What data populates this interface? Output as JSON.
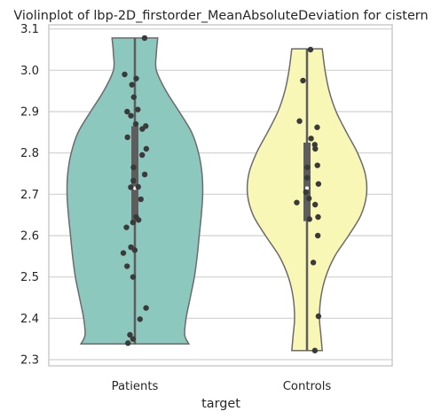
{
  "chart_data": {
    "type": "violin",
    "title": "Violinplot of lbp-2D_firstorder_MeanAbsoluteDeviation for cistern",
    "xlabel": "target",
    "ylabel": "",
    "ylim": [
      2.285,
      3.11
    ],
    "yticks": [
      2.3,
      2.4,
      2.5,
      2.6,
      2.7,
      2.8,
      2.9,
      3.0,
      3.1
    ],
    "ytick_labels": [
      "2.3",
      "2.4",
      "2.5",
      "2.6",
      "2.7",
      "2.8",
      "2.9",
      "3.0",
      "3.1"
    ],
    "categories": [
      "Patients",
      "Controls"
    ],
    "grid": true,
    "colors": {
      "Patients": "#8dc8be",
      "Controls": "#f9f7b6",
      "outline": "#6b6b6b",
      "points": "#3a3a3a",
      "grid": "#d0d0d0",
      "frame": "#cccccc"
    },
    "series": [
      {
        "category": "Patients",
        "min": 2.338,
        "max": 3.078,
        "q1": 2.635,
        "median": 2.715,
        "q3": 2.865,
        "violin_profile": [
          [
            2.338,
            0.78
          ],
          [
            2.36,
            0.72
          ],
          [
            2.4,
            0.74
          ],
          [
            2.45,
            0.8
          ],
          [
            2.5,
            0.86
          ],
          [
            2.55,
            0.9
          ],
          [
            2.6,
            0.93
          ],
          [
            2.65,
            0.96
          ],
          [
            2.7,
            0.98
          ],
          [
            2.75,
            0.97
          ],
          [
            2.8,
            0.92
          ],
          [
            2.85,
            0.82
          ],
          [
            2.9,
            0.64
          ],
          [
            2.95,
            0.45
          ],
          [
            3.0,
            0.31
          ],
          [
            3.04,
            0.31
          ],
          [
            3.078,
            0.33
          ]
        ],
        "points": [
          3.078,
          2.99,
          2.98,
          2.965,
          2.935,
          2.905,
          2.9,
          2.89,
          2.87,
          2.865,
          2.858,
          2.838,
          2.81,
          2.795,
          2.765,
          2.748,
          2.733,
          2.718,
          2.717,
          2.688,
          2.645,
          2.638,
          2.632,
          2.62,
          2.572,
          2.565,
          2.558,
          2.526,
          2.5,
          2.425,
          2.398,
          2.36,
          2.35,
          2.34
        ]
      },
      {
        "category": "Controls",
        "min": 2.322,
        "max": 3.052,
        "q1": 2.635,
        "median": 2.715,
        "q3": 2.825,
        "violin_profile": [
          [
            2.322,
            0.22
          ],
          [
            2.36,
            0.2
          ],
          [
            2.4,
            0.18
          ],
          [
            2.45,
            0.2
          ],
          [
            2.5,
            0.27
          ],
          [
            2.55,
            0.4
          ],
          [
            2.6,
            0.6
          ],
          [
            2.65,
            0.78
          ],
          [
            2.7,
            0.86
          ],
          [
            2.75,
            0.84
          ],
          [
            2.8,
            0.73
          ],
          [
            2.85,
            0.57
          ],
          [
            2.9,
            0.42
          ],
          [
            2.95,
            0.32
          ],
          [
            3.0,
            0.26
          ],
          [
            3.052,
            0.22
          ]
        ],
        "points": [
          3.05,
          2.975,
          2.877,
          2.862,
          2.835,
          2.82,
          2.81,
          2.77,
          2.765,
          2.74,
          2.725,
          2.705,
          2.69,
          2.68,
          2.675,
          2.645,
          2.64,
          2.6,
          2.535,
          2.405,
          2.322
        ]
      }
    ]
  }
}
